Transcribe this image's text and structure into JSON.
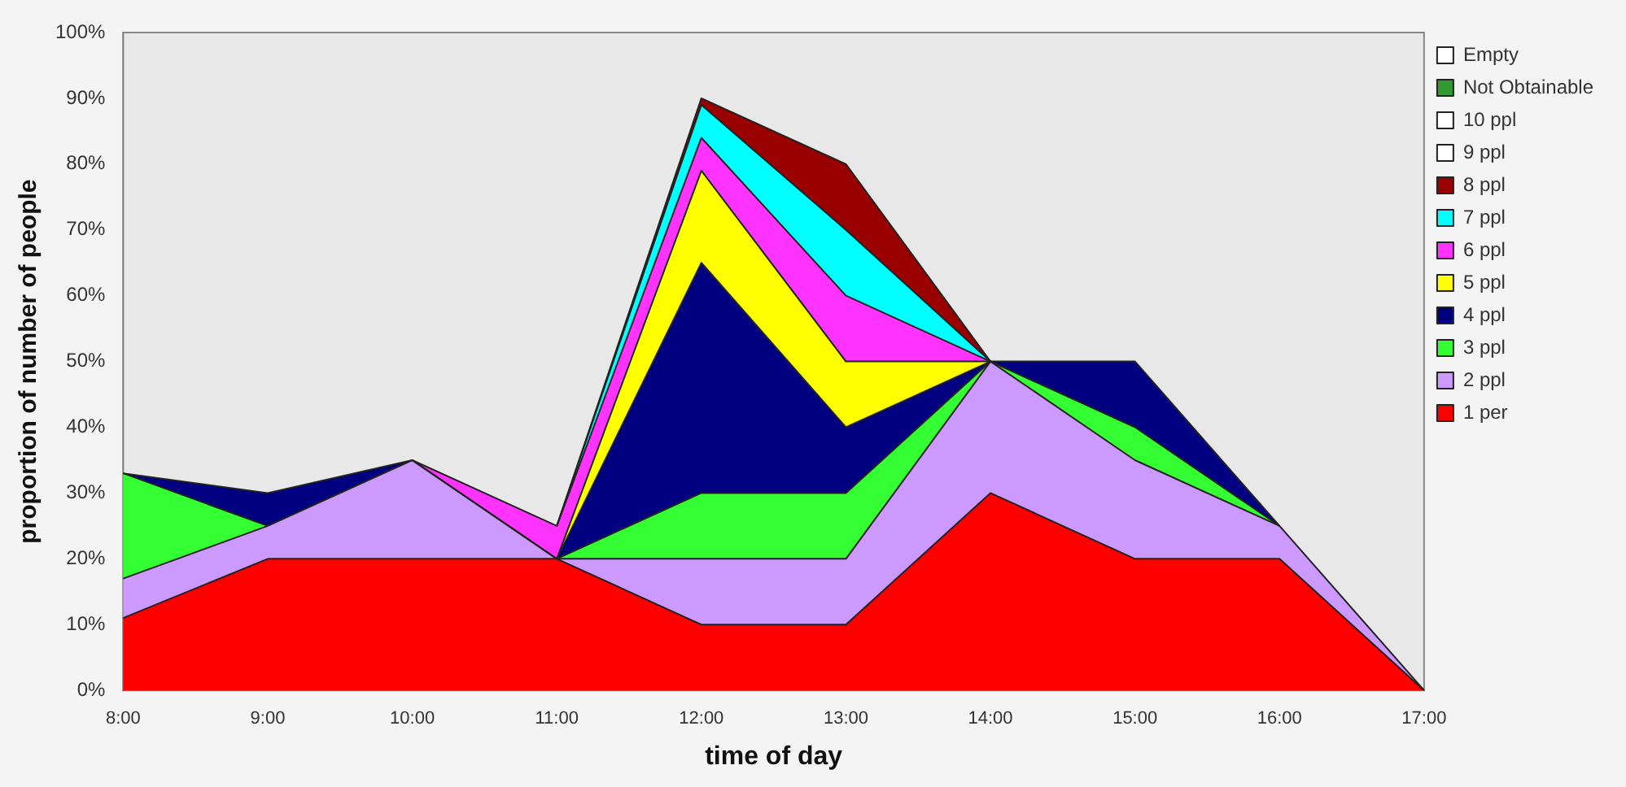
{
  "chart_data": {
    "type": "area",
    "stacked": true,
    "xlabel": "time of day",
    "ylabel": "proportion of number of people",
    "categories": [
      "8:00",
      "9:00",
      "10:00",
      "11:00",
      "12:00",
      "13:00",
      "14:00",
      "15:00",
      "16:00",
      "17:00"
    ],
    "ylim": [
      0,
      100
    ],
    "yticks": [
      {
        "value": 0,
        "label": "0%"
      },
      {
        "value": 10,
        "label": "10%"
      },
      {
        "value": 20,
        "label": "20%"
      },
      {
        "value": 30,
        "label": "30%"
      },
      {
        "value": 40,
        "label": "40%"
      },
      {
        "value": 50,
        "label": "50%"
      },
      {
        "value": 60,
        "label": "60%"
      },
      {
        "value": 70,
        "label": "70%"
      },
      {
        "value": 80,
        "label": "80%"
      },
      {
        "value": 90,
        "label": "90%"
      },
      {
        "value": 100,
        "label": "100%"
      }
    ],
    "grid": false,
    "legend": "right",
    "series": [
      {
        "name": "1 per",
        "color": "#ff0000",
        "values": [
          11,
          20,
          20,
          20,
          10,
          10,
          30,
          20,
          20,
          0
        ]
      },
      {
        "name": "2 ppl",
        "color": "#cc99ff",
        "values": [
          6,
          5,
          15,
          0,
          10,
          10,
          20,
          15,
          5,
          0
        ]
      },
      {
        "name": "3 ppl",
        "color": "#33ff33",
        "values": [
          16,
          0,
          null,
          0,
          10,
          10,
          0,
          5,
          0,
          null
        ]
      },
      {
        "name": "4 ppl",
        "color": "#000080",
        "values": [
          0,
          5,
          0,
          0,
          35,
          10,
          0,
          10,
          0,
          null
        ]
      },
      {
        "name": "5 ppl",
        "color": "#ffff00",
        "values": [
          null,
          null,
          null,
          0,
          14,
          10,
          0,
          null,
          null,
          null
        ]
      },
      {
        "name": "6 ppl",
        "color": "#ff33ff",
        "values": [
          null,
          null,
          0,
          5,
          5,
          10,
          0,
          null,
          null,
          null
        ]
      },
      {
        "name": "7 ppl",
        "color": "#00ffff",
        "values": [
          null,
          null,
          null,
          0,
          5,
          10,
          0,
          null,
          null,
          null
        ]
      },
      {
        "name": "8 ppl",
        "color": "#990000",
        "values": [
          null,
          null,
          null,
          0,
          1,
          10,
          0,
          null,
          null,
          null
        ]
      },
      {
        "name": "9 ppl",
        "color": "#ffffff",
        "values": [
          null,
          null,
          null,
          null,
          null,
          null,
          null,
          null,
          null,
          null
        ]
      },
      {
        "name": "10 ppl",
        "color": "#ffffff",
        "values": [
          null,
          null,
          null,
          null,
          null,
          null,
          null,
          null,
          null,
          null
        ]
      },
      {
        "name": "Not Obtainable",
        "color": "#339933",
        "values": [
          null,
          null,
          null,
          null,
          null,
          null,
          null,
          null,
          null,
          null
        ]
      },
      {
        "name": "Empty",
        "color": "#ffffff",
        "values": [
          null,
          null,
          null,
          null,
          null,
          null,
          null,
          null,
          null,
          null
        ]
      }
    ]
  }
}
